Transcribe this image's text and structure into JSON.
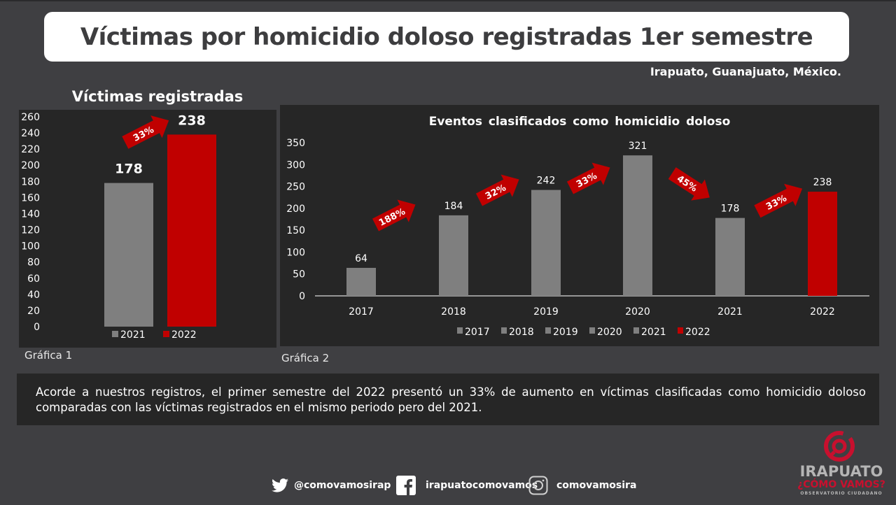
{
  "header": {
    "title": "Víctimas por homicidio doloso registradas 1er semestre",
    "location": "Irapuato, Guanajuato, México."
  },
  "colors": {
    "gray": "#7f7f7f",
    "red": "#c00000",
    "panel": "#262626",
    "background": "#3f3f42"
  },
  "captions": {
    "chart1": "Gráfica 1",
    "chart2": "Gráfica 2"
  },
  "note": "Acorde a nuestros registros, el primer semestre del 2022 presentó un 33% de aumento en víctimas clasificadas como homicidio doloso comparadas con las víctimas registrados en el mismo periodo pero del 2021.",
  "social": {
    "twitter": "@comovamosirap",
    "facebook": "irapuatocomovamos",
    "instagram": "comovamosira"
  },
  "logo": {
    "line1": "IRAPUATO",
    "line2": "¿CÓMO VAMOS?",
    "line3": "OBSERVATORIO CIUDADANO"
  },
  "chart_data": [
    {
      "type": "bar",
      "title": "Víctimas registradas",
      "categories": [
        "2021",
        "2022"
      ],
      "values": [
        178,
        238
      ],
      "colors": [
        "#7f7f7f",
        "#c00000"
      ],
      "ylim": [
        0,
        260
      ],
      "yticks": [
        0,
        20,
        40,
        60,
        80,
        100,
        120,
        140,
        160,
        180,
        200,
        220,
        240,
        260
      ],
      "legend": [
        "2021",
        "2022"
      ],
      "legend_position": "bottom",
      "grid": false,
      "annotations": [
        {
          "label": "33%",
          "direction": "up",
          "between": [
            "2021",
            "2022"
          ]
        }
      ]
    },
    {
      "type": "bar",
      "title": "Eventos clasificados como homicidio doloso",
      "categories": [
        "2017",
        "2018",
        "2019",
        "2020",
        "2021",
        "2022"
      ],
      "values": [
        64,
        184,
        242,
        321,
        178,
        238
      ],
      "colors": [
        "#7f7f7f",
        "#7f7f7f",
        "#7f7f7f",
        "#7f7f7f",
        "#7f7f7f",
        "#c00000"
      ],
      "ylim": [
        0,
        350
      ],
      "yticks": [
        0,
        50,
        100,
        150,
        200,
        250,
        300,
        350
      ],
      "legend": [
        "2017",
        "2018",
        "2019",
        "2020",
        "2021",
        "2022"
      ],
      "legend_position": "bottom",
      "grid": false,
      "annotations": [
        {
          "label": "188%",
          "direction": "up",
          "between": [
            "2017",
            "2018"
          ]
        },
        {
          "label": "32%",
          "direction": "up",
          "between": [
            "2018",
            "2019"
          ]
        },
        {
          "label": "33%",
          "direction": "up",
          "between": [
            "2019",
            "2020"
          ]
        },
        {
          "label": "45%",
          "direction": "down",
          "between": [
            "2020",
            "2021"
          ]
        },
        {
          "label": "33%",
          "direction": "up",
          "between": [
            "2021",
            "2022"
          ]
        }
      ]
    }
  ]
}
